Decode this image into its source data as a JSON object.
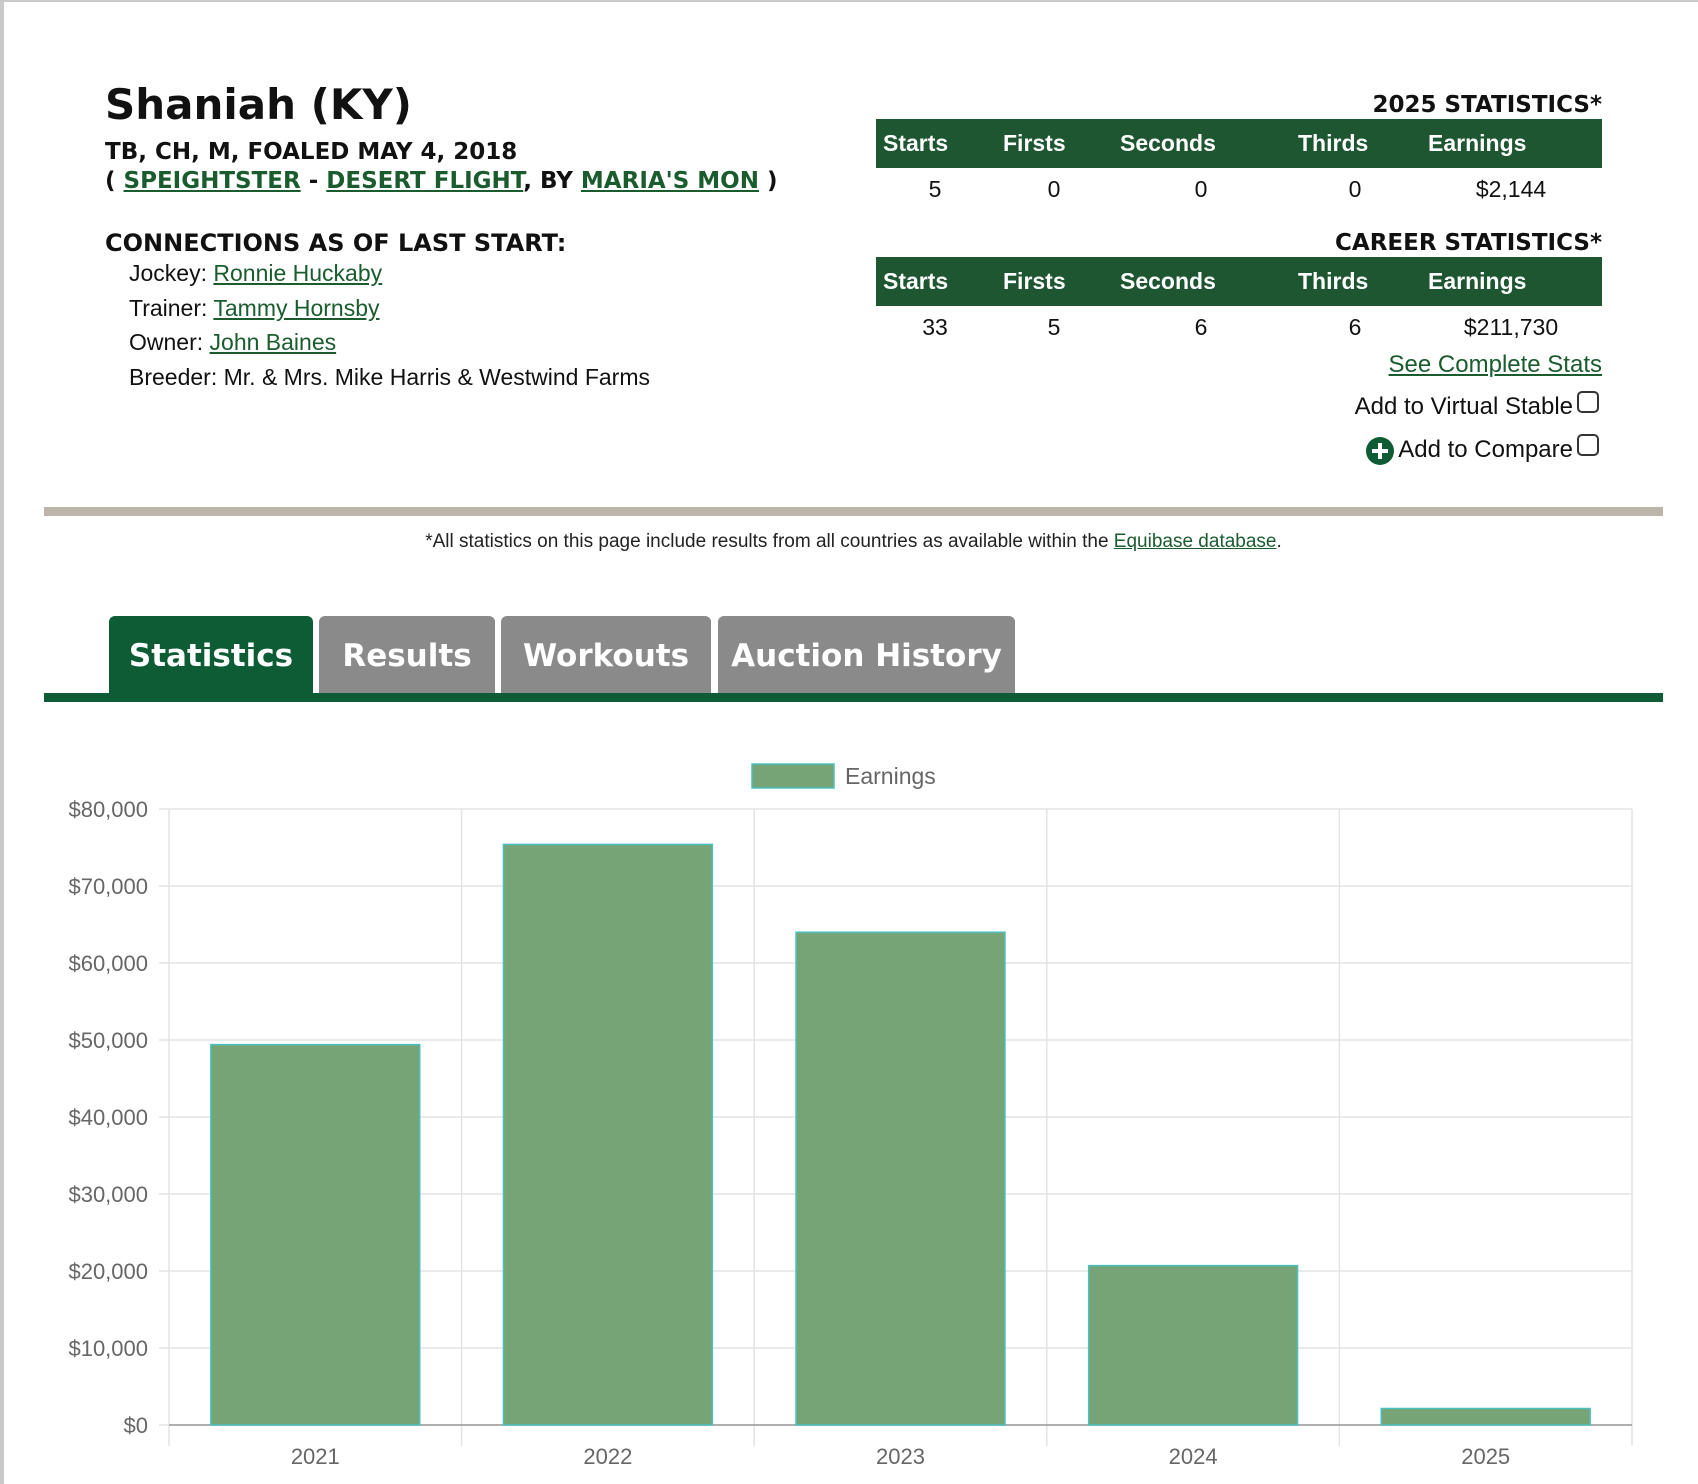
{
  "header": {
    "name": "Shaniah (KY)",
    "description": "TB, CH, M, FOALED MAY 4, 2018",
    "pedigree": {
      "open": "(",
      "sire": "SPEIGHTSTER",
      "dash": "-",
      "dam": "DESERT FLIGHT",
      "by": ", BY",
      "damsire": "MARIA'S MON",
      "close": ")"
    }
  },
  "connections": {
    "title": "CONNECTIONS AS OF LAST START:",
    "rows": [
      {
        "label": "Jockey:",
        "value": "Ronnie Huckaby",
        "link": true
      },
      {
        "label": "Trainer:",
        "value": "Tammy Hornsby",
        "link": true
      },
      {
        "label": "Owner:",
        "value": "John Baines",
        "link": true
      },
      {
        "label": "Breeder:",
        "value": "Mr. & Mrs. Mike Harris & Westwind Farms",
        "link": false
      }
    ]
  },
  "stats": [
    {
      "title": "2025 STATISTICS*",
      "columns": [
        "Starts",
        "Firsts",
        "Seconds",
        "Thirds",
        "Earnings"
      ],
      "row": [
        "5",
        "0",
        "0",
        "0",
        "$2,144"
      ]
    },
    {
      "title": "CAREER STATISTICS*",
      "columns": [
        "Starts",
        "Firsts",
        "Seconds",
        "Thirds",
        "Earnings"
      ],
      "row": [
        "33",
        "5",
        "6",
        "6",
        "$211,730"
      ]
    }
  ],
  "actions": {
    "complete_stats": "See Complete Stats",
    "virtual_stable": "Add to Virtual Stable",
    "compare": "Add to Compare"
  },
  "footnote": {
    "text": "*All statistics on this page include results from all countries as available within the",
    "link": "Equibase database",
    "end": "."
  },
  "tabs": [
    "Statistics",
    "Results",
    "Workouts",
    "Auction History"
  ],
  "chart_data": {
    "type": "bar",
    "categories": [
      "2021",
      "2022",
      "2023",
      "2024",
      "2025"
    ],
    "series": [
      {
        "name": "Earnings",
        "color": "#76a477",
        "border_color": "#4bc0c0",
        "values": [
          49400,
          75400,
          64000,
          20700,
          2144
        ]
      }
    ],
    "ylim": [
      0,
      80000
    ],
    "yticks": [
      {
        "value": 0,
        "label": "$0"
      },
      {
        "value": 10000,
        "label": "$10,000"
      },
      {
        "value": 20000,
        "label": "$20,000"
      },
      {
        "value": 30000,
        "label": "$30,000"
      },
      {
        "value": 40000,
        "label": "$40,000"
      },
      {
        "value": 50000,
        "label": "$50,000"
      },
      {
        "value": 60000,
        "label": "$60,000"
      },
      {
        "value": 70000,
        "label": "$70,000"
      },
      {
        "value": 80000,
        "label": "$80,000"
      }
    ],
    "grid": true
  }
}
